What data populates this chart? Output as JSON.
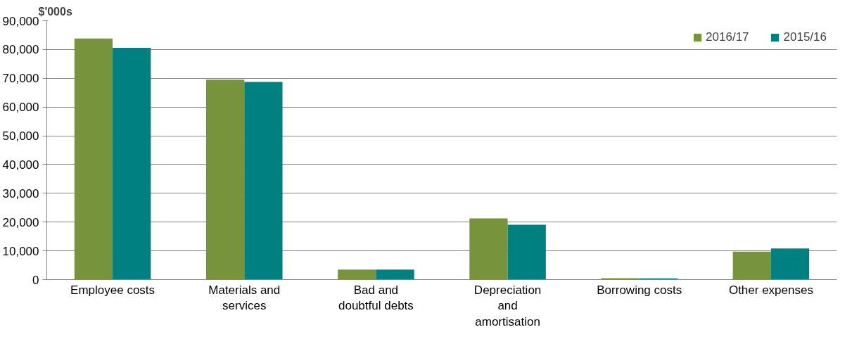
{
  "chart_data": {
    "type": "bar",
    "ylabel": "$'000s",
    "categories": [
      "Employee costs",
      "Materials and services",
      "Bad and doubtful debts",
      "Depreciation and amortisation",
      "Borrowing costs",
      "Other expenses"
    ],
    "series": [
      {
        "name": "2016/17",
        "color": "#77933c",
        "values": [
          83800,
          69500,
          3500,
          21300,
          500,
          9700
        ]
      },
      {
        "name": "2015/16",
        "color": "#008080",
        "values": [
          80600,
          68700,
          3500,
          19100,
          400,
          10800
        ]
      }
    ],
    "ylim": [
      0,
      90000
    ],
    "yticks": [
      {
        "value": 0,
        "label": "0"
      },
      {
        "value": 10000,
        "label": "10,000"
      },
      {
        "value": 20000,
        "label": "20,000"
      },
      {
        "value": 30000,
        "label": "30,000"
      },
      {
        "value": 40000,
        "label": "40,000"
      },
      {
        "value": 50000,
        "label": "50,000"
      },
      {
        "value": 60000,
        "label": "60,000"
      },
      {
        "value": 70000,
        "label": "70,000"
      },
      {
        "value": 80000,
        "label": "80,000"
      },
      {
        "value": 90000,
        "label": "90,000"
      }
    ],
    "grid": "y",
    "legend": "top right"
  }
}
